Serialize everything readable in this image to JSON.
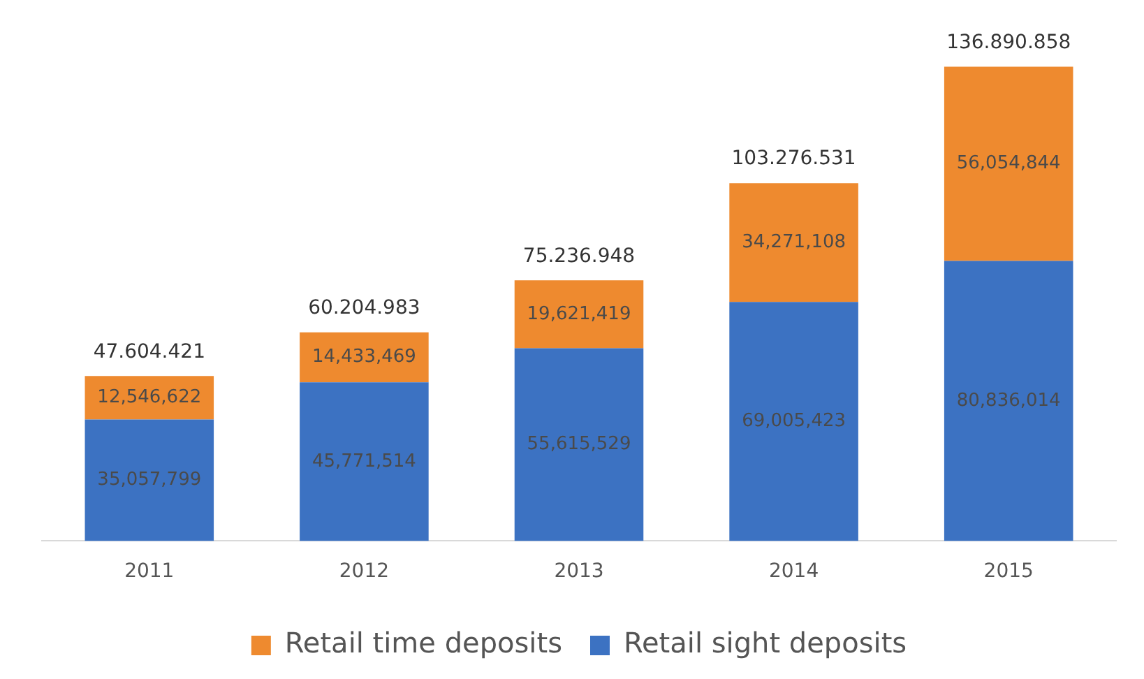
{
  "chart_data": {
    "type": "bar",
    "stacked": true,
    "categories": [
      "2011",
      "2012",
      "2013",
      "2014",
      "2015"
    ],
    "series": [
      {
        "name": "Retail sight deposits",
        "color": "#3c72c2",
        "values": [
          35057799,
          45771514,
          55615529,
          69005423,
          80836014
        ],
        "value_labels": [
          "35,057,799",
          "45,771,514",
          "55,615,529",
          "69,005,423",
          "80,836,014"
        ]
      },
      {
        "name": "Retail time deposits",
        "color": "#ee8a2f",
        "values": [
          12546622,
          14433469,
          19621419,
          34271108,
          56054844
        ],
        "value_labels": [
          "12,546,622",
          "14,433,469",
          "19,621,419",
          "34,271,108",
          "56,054,844"
        ]
      }
    ],
    "totals": [
      "47.604.421",
      "60.204.983",
      "75.236.948",
      "103.276.531",
      "136.890.858"
    ],
    "grid": false,
    "tick_labels": "x",
    "legend": "bottom"
  }
}
